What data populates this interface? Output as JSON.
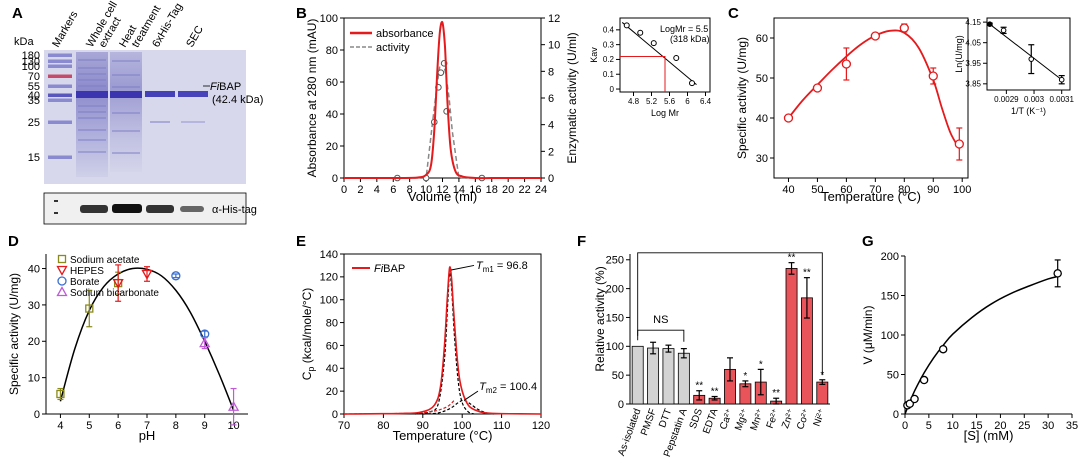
{
  "panel_letters": [
    "A",
    "B",
    "C",
    "D",
    "E",
    "F",
    "G"
  ],
  "panelA": {
    "kda_label": "kDa",
    "markers": [
      "180",
      "130",
      "100",
      "70",
      "55",
      "40",
      "35",
      "25",
      "15"
    ],
    "lanes": [
      "Markers",
      "Whole cell extract",
      "Heat treatment",
      "6xHis-Tag",
      "SEC"
    ],
    "band_label_italic": "Fi",
    "band_label": "BAP",
    "band_size": "(42.4 kDa)",
    "blot_label": "α-His-tag"
  },
  "chart_data": [
    {
      "id": "B",
      "type": "line",
      "xlabel": "Volume (ml)",
      "ylabel": "Absorbance at 280 nm (mAU)",
      "y2label": "Enzymatic activity (U/ml)",
      "xlim": [
        0,
        24
      ],
      "ylim": [
        0,
        100
      ],
      "y2lim": [
        0,
        12
      ],
      "xticks": [
        0,
        2,
        4,
        6,
        8,
        10,
        12,
        14,
        16,
        18,
        20,
        22,
        24
      ],
      "yticks": [
        0,
        20,
        40,
        60,
        80,
        100
      ],
      "y2ticks": [
        0,
        2,
        4,
        6,
        8,
        10,
        12
      ],
      "legend": [
        "absorbance",
        "activity"
      ],
      "series": [
        {
          "name": "absorbance",
          "color": "#e41a1c",
          "x": [
            0,
            6,
            9,
            10,
            10.6,
            11.0,
            11.4,
            11.7,
            12.0,
            12.3,
            12.6,
            13.0,
            13.6,
            14.4,
            16,
            18,
            20,
            24
          ],
          "y": [
            0,
            0,
            0.3,
            2,
            8,
            30,
            70,
            92,
            97,
            82,
            48,
            18,
            4,
            1,
            0,
            0,
            0,
            0
          ]
        },
        {
          "name": "activity",
          "color": "#888888",
          "x": [
            6.5,
            10.0,
            10.8,
            11.3,
            11.7,
            12.1,
            12.4,
            12.8,
            13.2,
            14.0,
            17.0
          ],
          "y": [
            0,
            0,
            4.2,
            6.8,
            8.5,
            8.6,
            7.8,
            6.0,
            3.5,
            0,
            0
          ],
          "markers_x": [
            6.5,
            10.0,
            11.0,
            11.5,
            11.8,
            12.2,
            12.5,
            16.8
          ],
          "markers_y": [
            0,
            0,
            4.2,
            6.8,
            7.9,
            8.6,
            5.0,
            0
          ]
        }
      ],
      "inset": {
        "xlabel": "Log Mr",
        "ylabel": "Kav",
        "xlim": [
          4.5,
          6.5
        ],
        "ylim": [
          -0.02,
          0.48
        ],
        "xticks": [
          4.8,
          5.2,
          5.6,
          6.0,
          6.4
        ],
        "yticks": [
          0,
          0.1,
          0.2,
          0.3,
          0.4
        ],
        "points": [
          [
            4.65,
            0.43
          ],
          [
            4.95,
            0.38
          ],
          [
            5.25,
            0.31
          ],
          [
            5.75,
            0.21
          ],
          [
            6.1,
            0.04
          ]
        ],
        "fit": [
          [
            4.55,
            0.45
          ],
          [
            6.2,
            0.03
          ]
        ],
        "marker": {
          "x": 5.5,
          "y": 0.22
        },
        "annotation": "LogMr = 5.5",
        "annotation2": "(318 kDa)"
      }
    },
    {
      "id": "C",
      "type": "scatter",
      "xlabel": "Temperature (°C)",
      "ylabel": "Specific activity (U/mg)",
      "xlim": [
        35,
        102
      ],
      "ylim": [
        25,
        65
      ],
      "xticks": [
        40,
        50,
        60,
        70,
        80,
        90,
        100
      ],
      "yticks": [
        30,
        40,
        50,
        60
      ],
      "points": [
        [
          40,
          40
        ],
        [
          50,
          47.5
        ],
        [
          60,
          53.5
        ],
        [
          70,
          60.5
        ],
        [
          80,
          62.5
        ],
        [
          90,
          50.5
        ],
        [
          99,
          33.5
        ]
      ],
      "errors": [
        0.5,
        0.6,
        4,
        0.5,
        1,
        2,
        4
      ],
      "fit_x": [
        40,
        45,
        50,
        55,
        60,
        65,
        70,
        75,
        80,
        85,
        90,
        93,
        96,
        99
      ],
      "fit_y": [
        40,
        44.5,
        48.3,
        52,
        55.4,
        58.4,
        60.6,
        61.8,
        61.3,
        57.5,
        49.5,
        42.5,
        36.2,
        32.4
      ],
      "color": "#e41a1c",
      "inset": {
        "xlabel": "1/T (K⁻¹)",
        "ylabel": "Ln(U/mg)",
        "xlim": [
          0.00283,
          0.00313
        ],
        "ylim": [
          3.82,
          4.17
        ],
        "xticks": [
          0.0029,
          0.003,
          0.0031
        ],
        "xtick_labels": [
          "0.0029",
          "0.003",
          "0.0031"
        ],
        "yticks": [
          3.85,
          3.95,
          4.05,
          4.15
        ],
        "points": [
          [
            0.00284,
            4.14
          ],
          [
            0.00289,
            4.11
          ],
          [
            0.00299,
            3.97
          ],
          [
            0.0031,
            3.87
          ]
        ],
        "errors": [
          0.005,
          0.015,
          0.07,
          0.02
        ]
      }
    },
    {
      "id": "D",
      "type": "scatter",
      "xlabel": "pH",
      "ylabel": "Specific activity (U/mg)",
      "xlim": [
        3.5,
        10.5
      ],
      "ylim": [
        0,
        44
      ],
      "xticks": [
        4,
        5,
        6,
        7,
        8,
        9,
        10
      ],
      "yticks": [
        0,
        10,
        20,
        30,
        40
      ],
      "legend": [
        "Sodium acetate",
        "HEPES",
        "Borate",
        "Sodium bicarbonate"
      ],
      "series": [
        {
          "name": "Sodium acetate",
          "color": "#8a8a1a",
          "marker": "square",
          "points": [
            [
              4,
              5.5
            ],
            [
              5,
              29
            ],
            [
              6,
              36
            ]
          ],
          "errors": [
            1.5,
            5,
            3
          ]
        },
        {
          "name": "HEPES",
          "color": "#e41a1c",
          "marker": "triangle-down",
          "points": [
            [
              6,
              36
            ],
            [
              7,
              38.5
            ]
          ],
          "errors": [
            5,
            2
          ]
        },
        {
          "name": "Borate",
          "color": "#3a6fd0",
          "marker": "circle",
          "points": [
            [
              8,
              38
            ],
            [
              9,
              22
            ]
          ],
          "errors": [
            0.5,
            0.8
          ]
        },
        {
          "name": "Sodium bicarbonate",
          "color": "#c05bd8",
          "marker": "triangle-up",
          "points": [
            [
              9,
              19.5
            ],
            [
              10,
              2
            ]
          ],
          "errors": [
            1.5,
            5
          ]
        }
      ],
      "fit_x": [
        4,
        4.5,
        5,
        5.5,
        6,
        6.5,
        7,
        7.5,
        8,
        8.5,
        9,
        9.5,
        10
      ],
      "fit_y": [
        3.5,
        18,
        28.5,
        35,
        38.5,
        40,
        39.8,
        38,
        34,
        28,
        20,
        11,
        1
      ]
    },
    {
      "id": "E",
      "type": "line",
      "xlabel": "Temperature (°C)",
      "ylabel": "Cp (kcal/mole/°C)",
      "xlim": [
        70,
        120
      ],
      "ylim": [
        0,
        140
      ],
      "xticks": [
        70,
        80,
        90,
        100,
        110,
        120
      ],
      "yticks": [
        0,
        20,
        40,
        60,
        80,
        100,
        120,
        140
      ],
      "legend": [
        "FiBAP"
      ],
      "annotations": [
        {
          "label": "Tm1",
          "value": "= 96.8"
        },
        {
          "label": "Tm2",
          "value": "= 100.4"
        }
      ],
      "series": [
        {
          "name": "FiBAP",
          "color": "#e41a1c",
          "x": [
            70,
            85,
            90,
            93,
            94.5,
            95.5,
            96.2,
            96.8,
            97.3,
            97.8,
            98.5,
            99.2,
            100,
            101,
            102,
            104,
            106,
            110,
            120
          ],
          "y": [
            0,
            0.5,
            2,
            8,
            24,
            60,
            100,
            128,
            118,
            92,
            58,
            34,
            20,
            11,
            6,
            2.5,
            1,
            0.3,
            0
          ]
        },
        {
          "name": "Tm1 fit",
          "color": "#000000",
          "dash": true,
          "x": [
            88,
            92,
            94,
            95.5,
            96.3,
            96.8,
            97.3,
            98,
            99,
            100,
            101.5,
            103
          ],
          "y": [
            0,
            2,
            10,
            48,
            95,
            123,
            110,
            70,
            28,
            10,
            2,
            0
          ]
        },
        {
          "name": "Tm2 fit",
          "color": "#000000",
          "dash": true,
          "x": [
            90,
            94,
            97,
            99,
            100.4,
            102,
            104,
            106,
            108
          ],
          "y": [
            0,
            1,
            5,
            10,
            12,
            9,
            4,
            1.2,
            0
          ]
        },
        {
          "name": "baseline",
          "color": "#e41a1c",
          "dash": true,
          "x": [
            70,
            85,
            92,
            96,
            98
          ],
          "y": [
            0,
            0.5,
            2,
            6,
            12
          ]
        }
      ]
    },
    {
      "id": "F",
      "type": "bar",
      "xlabel": "",
      "ylabel": "Relative activity (%)",
      "ylim": [
        0,
        260
      ],
      "yticks": [
        0,
        50,
        100,
        150,
        200,
        250
      ],
      "categories": [
        "As-isolated",
        "PMSF",
        "DTT",
        "Pepstatin A",
        "SDS",
        "EDTA",
        "Ca²⁺",
        "Mg²⁺",
        "Mn²⁺",
        "Fe²⁺",
        "Zn²⁺",
        "Co²⁺",
        "Ni²⁺"
      ],
      "values": [
        100,
        97,
        96,
        88,
        15,
        10,
        60,
        35,
        38,
        5,
        235,
        184,
        38
      ],
      "errors": [
        0,
        10,
        6,
        8,
        8,
        3,
        20,
        5,
        22,
        5,
        10,
        35,
        4
      ],
      "significance": [
        "",
        "",
        "",
        "",
        "**",
        "**",
        "",
        "*",
        "*",
        "**",
        "**",
        "**",
        "*"
      ],
      "colors": [
        "#d3d3d3",
        "#d3d3d3",
        "#d3d3d3",
        "#d3d3d3",
        "#e8545a",
        "#e8545a",
        "#e8545a",
        "#e8545a",
        "#e8545a",
        "#e8545a",
        "#e8545a",
        "#e8545a",
        "#e8545a"
      ],
      "ns_label": "NS"
    },
    {
      "id": "G",
      "type": "scatter",
      "xlabel": "[S] (mM)",
      "ylabel": "V (μM/min)",
      "xlim": [
        0,
        35
      ],
      "ylim": [
        0,
        200
      ],
      "xticks": [
        0,
        5,
        10,
        15,
        20,
        25,
        30,
        35
      ],
      "yticks": [
        0,
        50,
        100,
        150,
        200
      ],
      "points": [
        [
          0.5,
          11
        ],
        [
          1,
          13
        ],
        [
          2,
          19
        ],
        [
          4,
          43
        ],
        [
          8,
          82
        ],
        [
          32,
          178
        ]
      ],
      "errors": [
        1,
        1,
        2,
        3,
        3,
        17
      ],
      "fit_x": [
        0,
        1,
        2,
        4,
        6,
        8,
        10,
        14,
        18,
        22,
        26,
        30,
        32
      ],
      "fit_y": [
        0,
        15,
        29,
        52,
        71,
        87,
        101,
        122,
        139,
        152,
        162,
        171,
        174
      ]
    }
  ]
}
